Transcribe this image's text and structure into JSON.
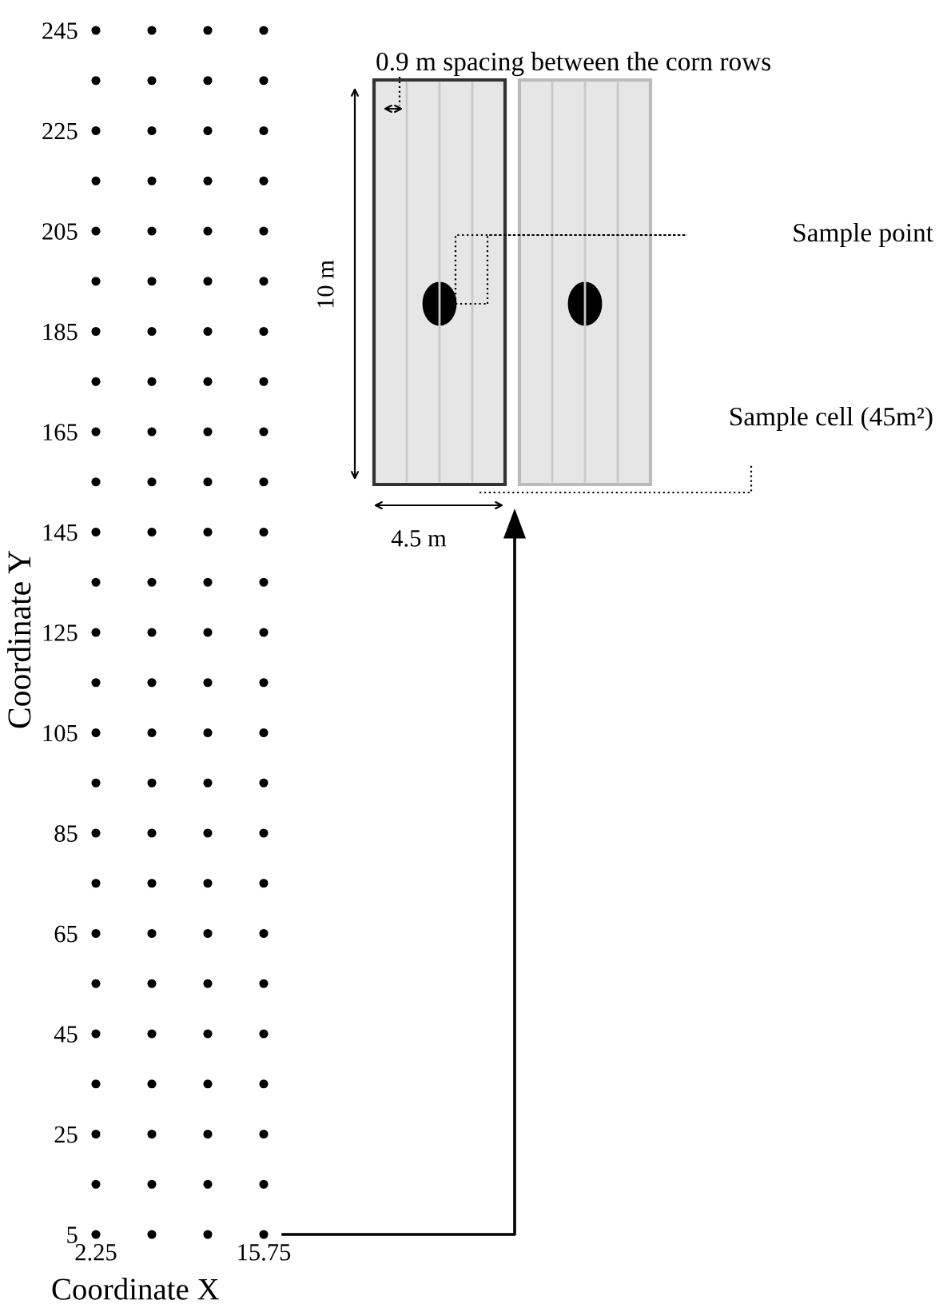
{
  "chart_data": {
    "type": "scatter",
    "xlabel": "Coordinate X",
    "ylabel": "Coordinate Y",
    "series": [
      {
        "color": "#000000",
        "x": [
          2.25,
          2.25,
          2.25,
          2.25,
          2.25,
          2.25,
          2.25,
          2.25,
          2.25,
          2.25,
          2.25,
          2.25,
          2.25,
          2.25,
          2.25,
          2.25,
          2.25,
          2.25,
          2.25,
          2.25,
          2.25,
          2.25,
          2.25,
          2.25,
          2.25
        ],
        "values": [
          5,
          15,
          25,
          35,
          45,
          55,
          65,
          75,
          85,
          95,
          105,
          115,
          125,
          135,
          145,
          155,
          165,
          175,
          185,
          195,
          205,
          215,
          225,
          235,
          245
        ]
      },
      {
        "color": "#000000",
        "x": [
          6.75,
          6.75,
          6.75,
          6.75,
          6.75,
          6.75,
          6.75,
          6.75,
          6.75,
          6.75,
          6.75,
          6.75,
          6.75,
          6.75,
          6.75,
          6.75,
          6.75,
          6.75,
          6.75,
          6.75,
          6.75,
          6.75,
          6.75,
          6.75,
          6.75
        ],
        "values": [
          5,
          15,
          25,
          35,
          45,
          55,
          65,
          75,
          85,
          95,
          105,
          115,
          125,
          135,
          145,
          155,
          165,
          175,
          185,
          195,
          205,
          215,
          225,
          235,
          245
        ]
      },
      {
        "color": "#000000",
        "x": [
          11.25,
          11.25,
          11.25,
          11.25,
          11.25,
          11.25,
          11.25,
          11.25,
          11.25,
          11.25,
          11.25,
          11.25,
          11.25,
          11.25,
          11.25,
          11.25,
          11.25,
          11.25,
          11.25,
          11.25,
          11.25,
          11.25,
          11.25,
          11.25,
          11.25
        ],
        "values": [
          5,
          15,
          25,
          35,
          45,
          55,
          65,
          75,
          85,
          95,
          105,
          115,
          125,
          135,
          145,
          155,
          165,
          175,
          185,
          195,
          205,
          215,
          225,
          235,
          245
        ]
      },
      {
        "color": "#000000",
        "x": [
          15.75,
          15.75,
          15.75,
          15.75,
          15.75,
          15.75,
          15.75,
          15.75,
          15.75,
          15.75,
          15.75,
          15.75,
          15.75,
          15.75,
          15.75,
          15.75,
          15.75,
          15.75,
          15.75,
          15.75,
          15.75,
          15.75,
          15.75,
          15.75,
          15.75
        ],
        "values": [
          5,
          15,
          25,
          35,
          45,
          55,
          65,
          75,
          85,
          95,
          105,
          115,
          125,
          135,
          145,
          155,
          165,
          175,
          185,
          195,
          205,
          215,
          225,
          235,
          245
        ]
      }
    ],
    "xlim": [
      2.25,
      15.75
    ],
    "ylim": [
      5,
      245
    ],
    "xticks": [
      2.25,
      15.75
    ],
    "yticks": [
      5,
      25,
      45,
      65,
      85,
      105,
      125,
      145,
      165,
      185,
      205,
      225,
      245
    ],
    "marker": "circle",
    "grid": false,
    "annotations": [
      "0.9 m spacing between the corn rows",
      "Sample point",
      "Sample cell (45m²)",
      "10 m",
      "4.5 m"
    ]
  }
}
